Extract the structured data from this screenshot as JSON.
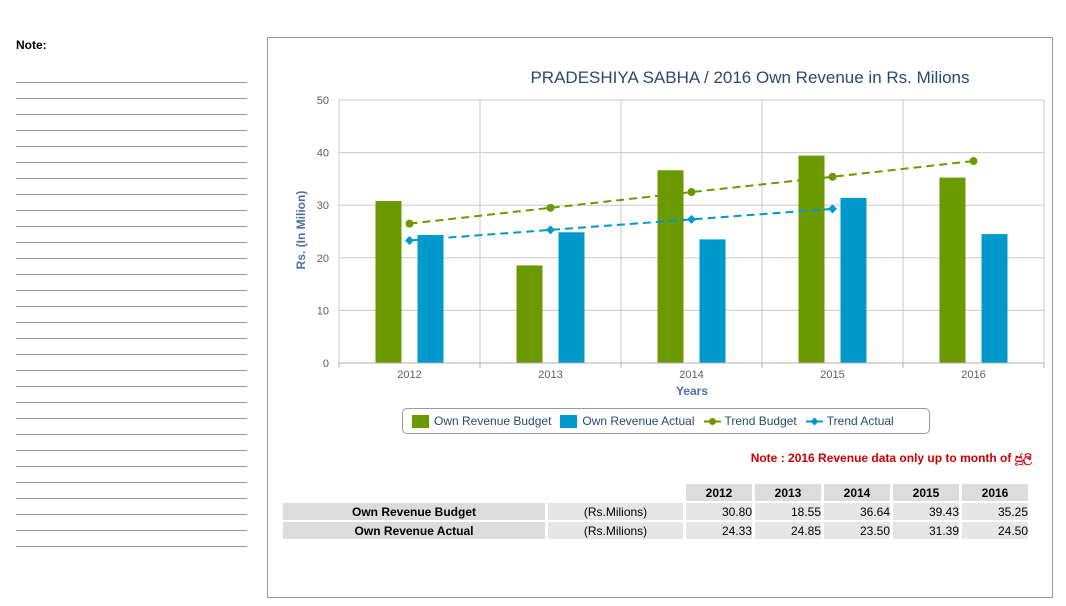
{
  "notes": {
    "label": "Note:",
    "line_count": 30
  },
  "chart_data": {
    "type": "bar",
    "title": "PRADESHIYA SABHA / 2016 Own Revenue in Rs. Milions",
    "xlabel": "Years",
    "ylabel": "Rs. (In Milion)",
    "categories": [
      "2012",
      "2013",
      "2014",
      "2015",
      "2016"
    ],
    "ylim": [
      0,
      50
    ],
    "yticks": [
      0,
      10,
      20,
      30,
      40,
      50
    ],
    "grid": true,
    "legend": "bottom-center",
    "series": [
      {
        "name": "Own Revenue Budget",
        "kind": "bar",
        "color": "#6a9a00",
        "values": [
          30.8,
          18.55,
          36.64,
          39.43,
          35.25
        ]
      },
      {
        "name": "Own Revenue Actual",
        "kind": "bar",
        "color": "#0099cc",
        "values": [
          24.33,
          24.85,
          23.5,
          31.39,
          24.5
        ]
      },
      {
        "name": "Trend Budget",
        "kind": "line",
        "style": "dashed",
        "marker": "circle",
        "color": "#6a9a00",
        "values": [
          26.5,
          29.5,
          32.5,
          35.4,
          38.4
        ]
      },
      {
        "name": "Trend Actual",
        "kind": "line",
        "style": "dashed",
        "marker": "diamond",
        "color": "#0099cc",
        "values": [
          23.3,
          25.3,
          27.3,
          29.3,
          null
        ]
      }
    ]
  },
  "footnote": "Note : 2016 Revenue data only up to month of ජූලි",
  "table": {
    "years": [
      "2012",
      "2013",
      "2014",
      "2015",
      "2016"
    ],
    "rows": [
      {
        "label": "Own Revenue Budget",
        "unit": "(Rs.Milions)",
        "values": [
          "30.80",
          "18.55",
          "36.64",
          "39.43",
          "35.25"
        ]
      },
      {
        "label": "Own Revenue Actual",
        "unit": "(Rs.Milions)",
        "values": [
          "24.33",
          "24.85",
          "23.50",
          "31.39",
          "24.50"
        ]
      }
    ]
  }
}
